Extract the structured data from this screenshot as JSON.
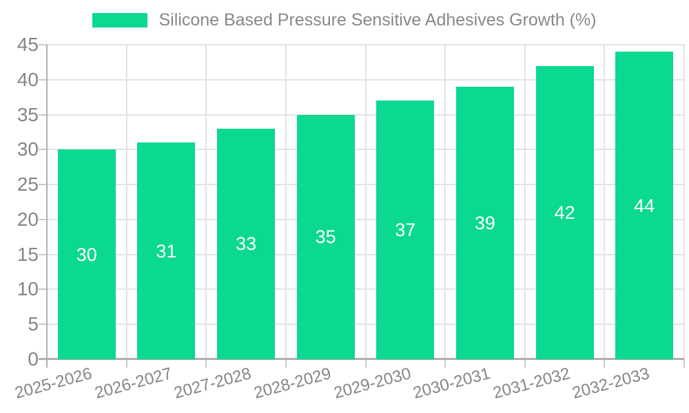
{
  "chart_data": {
    "type": "bar",
    "title": "Silicone Based Pressure Sensitive Adhesives Growth (%)",
    "categories": [
      "2025-2026",
      "2026-2027",
      "2027-2028",
      "2028-2029",
      "2029-2030",
      "2030-2031",
      "2031-2032",
      "2032-2033"
    ],
    "values": [
      30,
      31,
      33,
      35,
      37,
      39,
      42,
      44
    ],
    "xlabel": "",
    "ylabel": "",
    "ylim": [
      0,
      45
    ],
    "yticks": [
      0,
      5,
      10,
      15,
      20,
      25,
      30,
      35,
      40,
      45
    ],
    "grid": true,
    "legend_position": "top-center",
    "x_label_rotation_deg": -15,
    "colors": {
      "bar": "#0BD98F",
      "value_label": "#FFFFFF",
      "axis_label": "#858585",
      "title": "#888888",
      "grid": "#E3E3E3",
      "axis_line": "#AFAFAF",
      "tick": "#C9C9C9",
      "background": "#FFFFFF"
    }
  }
}
